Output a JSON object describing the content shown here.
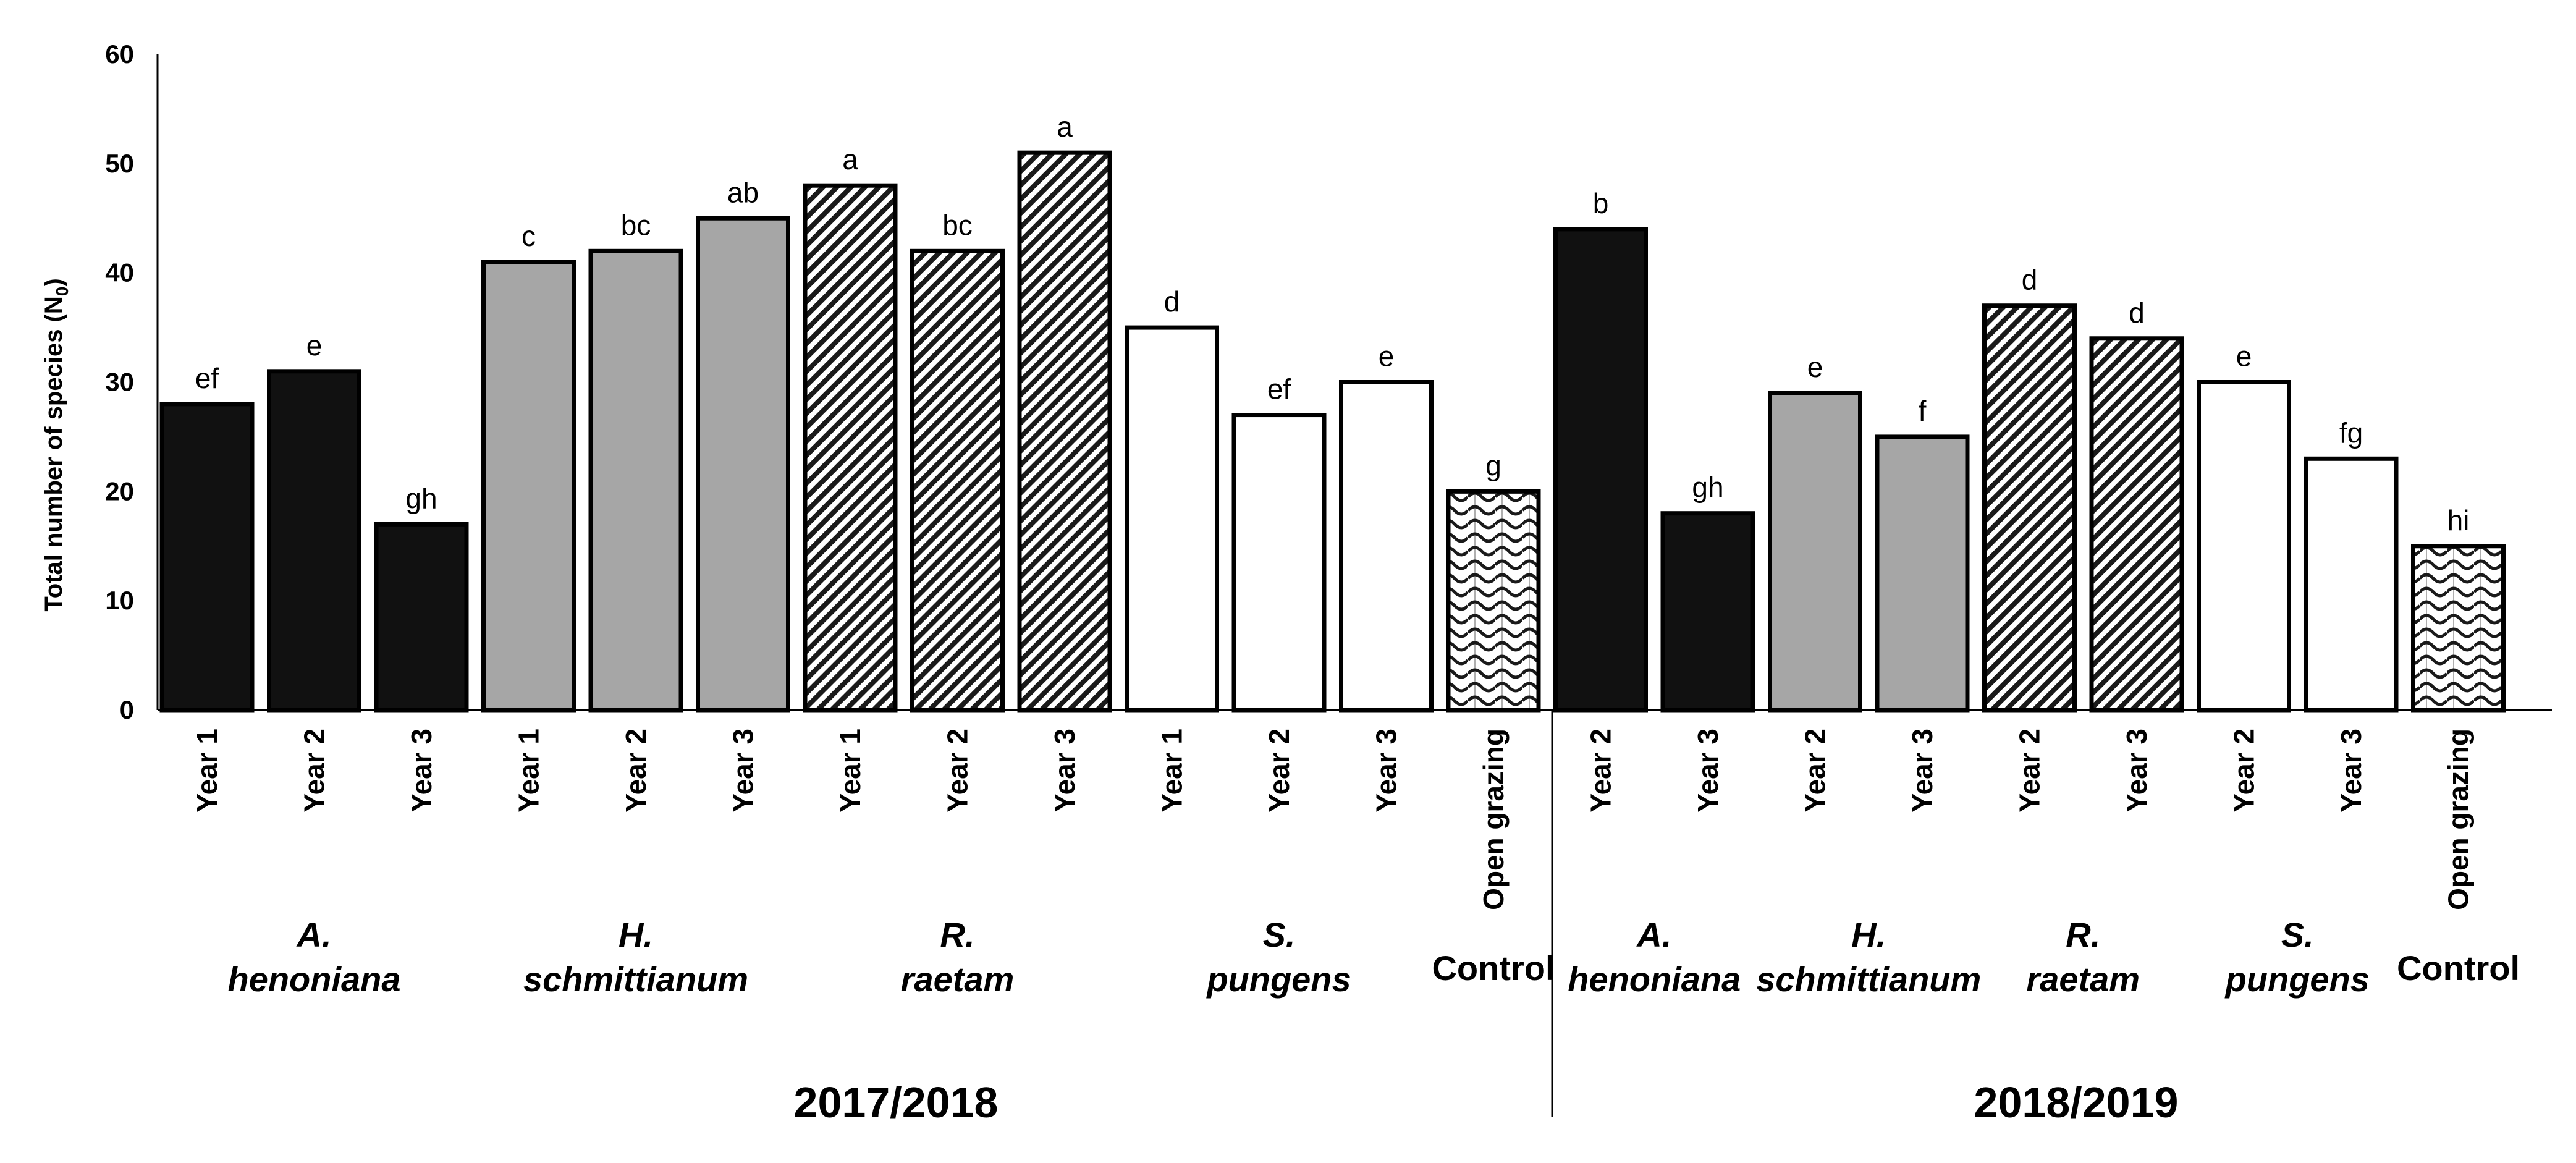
{
  "chart_data": {
    "type": "bar",
    "title": "",
    "xlabel": "",
    "ylabel": "Total number of species (N",
    "ylabel_subscript": "0",
    "ylabel_close": ")",
    "ylim": [
      0,
      60
    ],
    "yticks": [
      "0",
      "10",
      "20",
      "30",
      "40",
      "50",
      "60"
    ],
    "grid": false,
    "legend": "none",
    "styles": {
      "black": "#111111",
      "grey": "#a6a6a6",
      "white": "#ffffff",
      "stroke": "#000000"
    },
    "bars": [
      {
        "category": "Year 1",
        "value": 28,
        "sig": "ef",
        "style": "black",
        "season": 0
      },
      {
        "category": "Year 2",
        "value": 31,
        "sig": "e",
        "style": "black",
        "season": 0
      },
      {
        "category": "Year 3",
        "value": 17,
        "sig": "gh",
        "style": "black",
        "season": 0
      },
      {
        "category": "Year 1",
        "value": 41,
        "sig": "c",
        "style": "grey",
        "season": 0
      },
      {
        "category": "Year 2",
        "value": 42,
        "sig": "bc",
        "style": "grey",
        "season": 0
      },
      {
        "category": "Year 3",
        "value": 45,
        "sig": "ab",
        "style": "grey",
        "season": 0
      },
      {
        "category": "Year 1",
        "value": 48,
        "sig": "a",
        "style": "hatch",
        "season": 0
      },
      {
        "category": "Year 2",
        "value": 42,
        "sig": "bc",
        "style": "hatch",
        "season": 0
      },
      {
        "category": "Year 3",
        "value": 51,
        "sig": "a",
        "style": "hatch",
        "season": 0
      },
      {
        "category": "Year 1",
        "value": 35,
        "sig": "d",
        "style": "white",
        "season": 0
      },
      {
        "category": "Year 2",
        "value": 27,
        "sig": "ef",
        "style": "white",
        "season": 0
      },
      {
        "category": "Year 3",
        "value": 30,
        "sig": "e",
        "style": "white",
        "season": 0
      },
      {
        "category": "Open grazing",
        "value": 20,
        "sig": "g",
        "style": "pattern",
        "season": 0
      },
      {
        "category": "Year 2",
        "value": 44,
        "sig": "b",
        "style": "black",
        "season": 1
      },
      {
        "category": "Year 3",
        "value": 18,
        "sig": "gh",
        "style": "black",
        "season": 1
      },
      {
        "category": "Year 2",
        "value": 29,
        "sig": "e",
        "style": "grey",
        "season": 1
      },
      {
        "category": "Year 3",
        "value": 25,
        "sig": "f",
        "style": "grey",
        "season": 1
      },
      {
        "category": "Year 2",
        "value": 37,
        "sig": "d",
        "style": "hatch",
        "season": 1
      },
      {
        "category": "Year 3",
        "value": 34,
        "sig": "d",
        "style": "hatch",
        "season": 1
      },
      {
        "category": "Year 2",
        "value": 30,
        "sig": "e",
        "style": "white",
        "season": 1
      },
      {
        "category": "Year 3",
        "value": 23,
        "sig": "fg",
        "style": "white",
        "season": 1
      },
      {
        "category": "Open grazing",
        "value": 15,
        "sig": "hi",
        "style": "pattern",
        "season": 1
      }
    ],
    "groups": [
      {
        "line1": "A.",
        "line2": "henoniana",
        "italic": true,
        "bars": [
          0,
          1,
          2
        ]
      },
      {
        "line1": "H.",
        "line2": "schmittianum",
        "italic": true,
        "bars": [
          3,
          4,
          5
        ]
      },
      {
        "line1": "R.",
        "line2": "raetam",
        "italic": true,
        "bars": [
          6,
          7,
          8
        ]
      },
      {
        "line1": "S.",
        "line2": "pungens",
        "italic": true,
        "bars": [
          9,
          10,
          11
        ]
      },
      {
        "line1": "",
        "line2": "Control",
        "italic": false,
        "bars": [
          12
        ]
      },
      {
        "line1": "A.",
        "line2": "henoniana",
        "italic": true,
        "bars": [
          13,
          14
        ]
      },
      {
        "line1": "H.",
        "line2": "schmittianum",
        "italic": true,
        "bars": [
          15,
          16
        ]
      },
      {
        "line1": "R.",
        "line2": "raetam",
        "italic": true,
        "bars": [
          17,
          18
        ]
      },
      {
        "line1": "S.",
        "line2": "pungens",
        "italic": true,
        "bars": [
          19,
          20
        ]
      },
      {
        "line1": "",
        "line2": "Control",
        "italic": false,
        "bars": [
          21
        ]
      }
    ],
    "seasons": [
      "2017/2018",
      "2018/2019"
    ]
  }
}
